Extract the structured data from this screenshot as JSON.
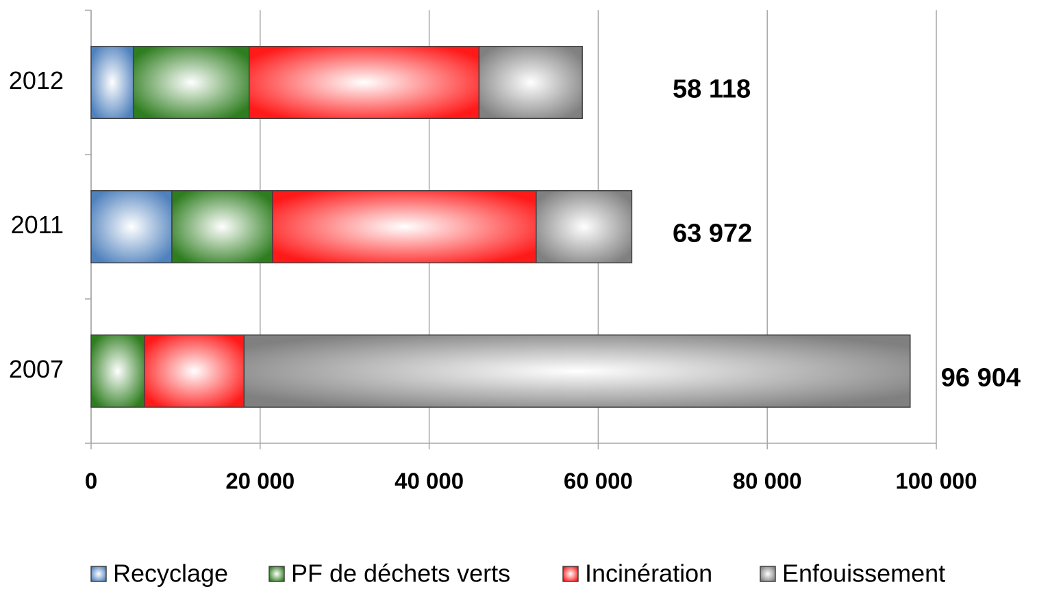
{
  "chart_data": {
    "type": "stacked-barh",
    "categories": [
      "2007",
      "2011",
      "2012"
    ],
    "series": [
      {
        "name": "Recyclage",
        "color": "#4f81bd",
        "values": [
          0,
          9560,
          5000
        ]
      },
      {
        "name": "PF de déchets verts",
        "color": "#2e7d1f",
        "values": [
          6300,
          11900,
          13700
        ]
      },
      {
        "name": "Incinération",
        "color": "#ff1a1a",
        "values": [
          11800,
          31200,
          27200
        ]
      },
      {
        "name": "Enfouissement",
        "color": "#808080",
        "values": [
          78804,
          11312,
          12218
        ]
      }
    ],
    "totals": [
      96904,
      63972,
      58118
    ],
    "total_labels": [
      "96 904",
      "63 972",
      "58 118"
    ],
    "xlim": [
      0,
      100000
    ],
    "xticks": [
      0,
      {
        "value": 20000,
        "label": "20 000"
      },
      {
        "value": 40000,
        "label": "40 000"
      },
      {
        "value": 60000,
        "label": "60 000"
      },
      {
        "value": 80000,
        "label": "80 000"
      },
      {
        "value": 100000,
        "label": "100 000"
      }
    ],
    "grid": true,
    "legend": "bottom"
  }
}
